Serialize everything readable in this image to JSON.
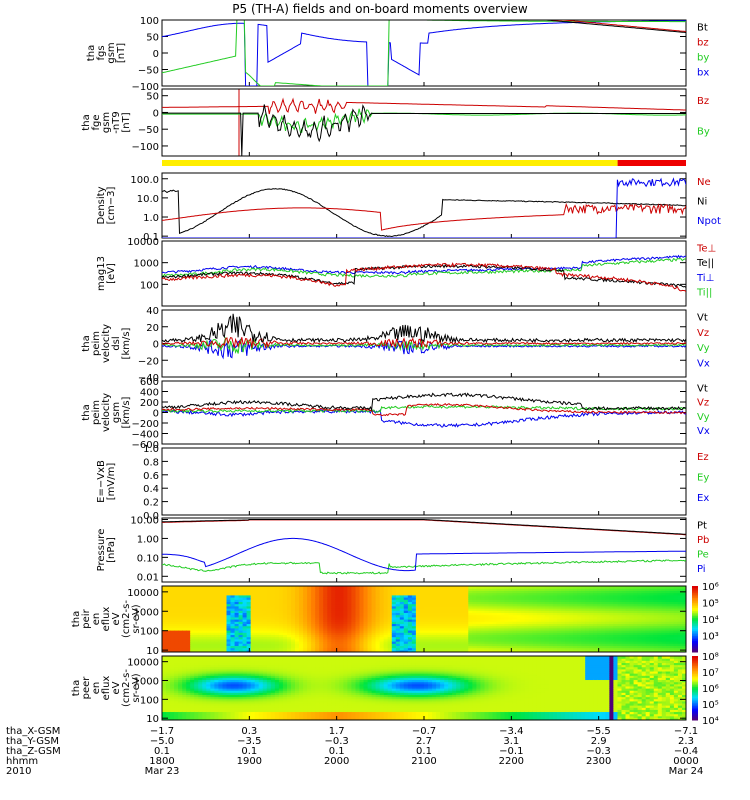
{
  "title": "P5 (TH-A) fields and on-board moments overview",
  "colors": {
    "black": "#000000",
    "red": "#cc0000",
    "green": "#22cc22",
    "blue": "#0000ee",
    "yellow": "#ffee00",
    "barred": "#ee0000"
  },
  "chart_data": [
    {
      "id": "fgs",
      "type": "line",
      "ylabel": [
        "tha",
        "fgs",
        "gsm",
        "[nT]"
      ],
      "ylim": [
        -100,
        100
      ],
      "scale": "linear",
      "yticks": [
        "100",
        "50",
        "0",
        "−50",
        "−100"
      ],
      "ytick_values": [
        100,
        50,
        0,
        -50,
        -100
      ],
      "legend": [
        {
          "name": "Bt",
          "color": "black"
        },
        {
          "name": "bz",
          "color": "red"
        },
        {
          "name": "by",
          "color": "green"
        },
        {
          "name": "bx",
          "color": "blue"
        }
      ]
    },
    {
      "id": "fge",
      "type": "line",
      "ylabel": [
        "tha",
        "fge",
        "gsm",
        "-nT9",
        "[nT]"
      ],
      "ylim": [
        -130,
        70
      ],
      "scale": "linear",
      "yticks": [
        "50",
        "0",
        "−50",
        "−100"
      ],
      "ytick_values": [
        50,
        0,
        -50,
        -100
      ],
      "legend": [
        {
          "name": "Bz",
          "color": "red"
        },
        {
          "name": "By",
          "color": "green"
        }
      ]
    },
    {
      "id": "density",
      "type": "line",
      "ylabel": [
        "Density",
        "[cm−3]"
      ],
      "ylim": [
        0.08,
        200
      ],
      "scale": "log",
      "yticks": [
        "100.0",
        "10.0",
        "1.0",
        "0.1"
      ],
      "ytick_values": [
        100,
        10,
        1,
        0.1
      ],
      "legend": [
        {
          "name": "Ne",
          "color": "red"
        },
        {
          "name": "Ni",
          "color": "black"
        },
        {
          "name": "Npot",
          "color": "blue"
        }
      ]
    },
    {
      "id": "temp",
      "type": "line",
      "ylabel": [
        "mag13",
        "[eV]"
      ],
      "ylim": [
        10,
        10000
      ],
      "scale": "log",
      "yticks": [
        "10000",
        "1000",
        "100"
      ],
      "ytick_values": [
        10000,
        1000,
        100
      ],
      "legend": [
        {
          "name": "Te⊥",
          "color": "red"
        },
        {
          "name": "Te||",
          "color": "black"
        },
        {
          "name": "Ti⊥",
          "color": "blue"
        },
        {
          "name": "Ti||",
          "color": "green"
        }
      ]
    },
    {
      "id": "vel1",
      "type": "line",
      "ylabel": [
        "tha",
        "peim",
        "velocity",
        "dsl",
        "[km/s]"
      ],
      "ylim": [
        -40,
        40
      ],
      "scale": "linear",
      "yticks": [
        "40",
        "20",
        "0",
        "−20",
        "−40"
      ],
      "ytick_values": [
        40,
        20,
        0,
        -20,
        -40
      ],
      "legend": [
        {
          "name": "Vt",
          "color": "black"
        },
        {
          "name": "Vz",
          "color": "red"
        },
        {
          "name": "Vy",
          "color": "green"
        },
        {
          "name": "Vx",
          "color": "blue"
        }
      ]
    },
    {
      "id": "vel2",
      "type": "line",
      "ylabel": [
        "tha",
        "peim",
        "velocity",
        "gsm",
        "[km/s]"
      ],
      "ylim": [
        -600,
        600
      ],
      "scale": "linear",
      "yticks": [
        "600",
        "400",
        "200",
        "0",
        "−200",
        "−400",
        "−600"
      ],
      "ytick_values": [
        600,
        400,
        200,
        0,
        -200,
        -400,
        -600
      ],
      "legend": [
        {
          "name": "Vt",
          "color": "black"
        },
        {
          "name": "Vz",
          "color": "red"
        },
        {
          "name": "Vy",
          "color": "green"
        },
        {
          "name": "Vx",
          "color": "blue"
        }
      ]
    },
    {
      "id": "efield",
      "type": "line",
      "ylabel": [
        "E=−VxB",
        "[mV/m]"
      ],
      "ylim": [
        0,
        1
      ],
      "scale": "linear",
      "yticks": [
        "1.0",
        "0.8",
        "0.6",
        "0.4",
        "0.2",
        "0.0"
      ],
      "ytick_values": [
        1,
        0.8,
        0.6,
        0.4,
        0.2,
        0
      ],
      "legend": [
        {
          "name": "Ez",
          "color": "red"
        },
        {
          "name": "Ey",
          "color": "green"
        },
        {
          "name": "Ex",
          "color": "blue"
        }
      ]
    },
    {
      "id": "pressure",
      "type": "line",
      "ylabel": [
        "Pressure",
        "[nPa]"
      ],
      "ylim": [
        0.005,
        12
      ],
      "scale": "log",
      "yticks": [
        "10.00",
        "1.00",
        "0.10",
        "0.01"
      ],
      "ytick_values": [
        10,
        1,
        0.1,
        0.01
      ],
      "legend": [
        {
          "name": "Pt",
          "color": "black"
        },
        {
          "name": "Pb",
          "color": "red"
        },
        {
          "name": "Pe",
          "color": "green"
        },
        {
          "name": "Pi",
          "color": "blue"
        }
      ]
    },
    {
      "id": "peir",
      "type": "heatmap",
      "ylabel": [
        "tha",
        "peir",
        "en",
        "eflux",
        "eV",
        "(cm2-s-",
        "sr-eV)"
      ],
      "ylim": [
        8,
        20000
      ],
      "scale": "log",
      "yticks": [
        "10000",
        "1000",
        "100",
        "10"
      ],
      "ytick_values": [
        10000,
        1000,
        100,
        10
      ],
      "colorbar": {
        "min_exp": 2,
        "max_exp": 6,
        "labels": [
          "10⁶",
          "10⁵",
          "10⁴",
          "10³"
        ],
        "label_exps": [
          6,
          5,
          4,
          3
        ]
      }
    },
    {
      "id": "peer",
      "type": "heatmap",
      "ylabel": [
        "tha",
        "peer",
        "en",
        "eflux",
        "eV",
        "(cm2-s-",
        "sr-eV)"
      ],
      "ylim": [
        8,
        20000
      ],
      "scale": "log",
      "yticks": [
        "10000",
        "1000",
        "100",
        "10"
      ],
      "ytick_values": [
        10000,
        1000,
        100,
        10
      ],
      "colorbar": {
        "min_exp": 4,
        "max_exp": 8,
        "labels": [
          "10⁸",
          "10⁷",
          "10⁶",
          "10⁵",
          "10⁴"
        ],
        "label_exps": [
          8,
          7,
          6,
          5,
          4
        ]
      }
    }
  ],
  "bar": [
    {
      "start": 1800,
      "end": 2313,
      "color": "yellow"
    },
    {
      "start": 2313,
      "end": 2400,
      "color": "barred"
    }
  ],
  "xaxis": {
    "row_labels": [
      "tha_X-GSM",
      "tha_Y-GSM",
      "tha_Z-GSM",
      "hhmm",
      "2010"
    ],
    "columns": [
      {
        "x": "1800",
        "v": [
          "−1.7",
          "−5.0",
          "0.1",
          "1800",
          "Mar 23"
        ]
      },
      {
        "x": "1900",
        "v": [
          "0.3",
          "−3.5",
          "0.1",
          "1900",
          ""
        ]
      },
      {
        "x": "2000",
        "v": [
          "1.7",
          "−0.3",
          "0.1",
          "2000",
          ""
        ]
      },
      {
        "x": "2100",
        "v": [
          "−0.7",
          "2.7",
          "0.1",
          "2100",
          ""
        ]
      },
      {
        "x": "2200",
        "v": [
          "−3.4",
          "3.1",
          "−0.1",
          "2200",
          ""
        ]
      },
      {
        "x": "2300",
        "v": [
          "−5.5",
          "2.9",
          "−0.3",
          "2300",
          ""
        ]
      },
      {
        "x": "2400",
        "v": [
          "−7.1",
          "2.3",
          "−0.4",
          "0000",
          "Mar 24"
        ]
      }
    ]
  }
}
